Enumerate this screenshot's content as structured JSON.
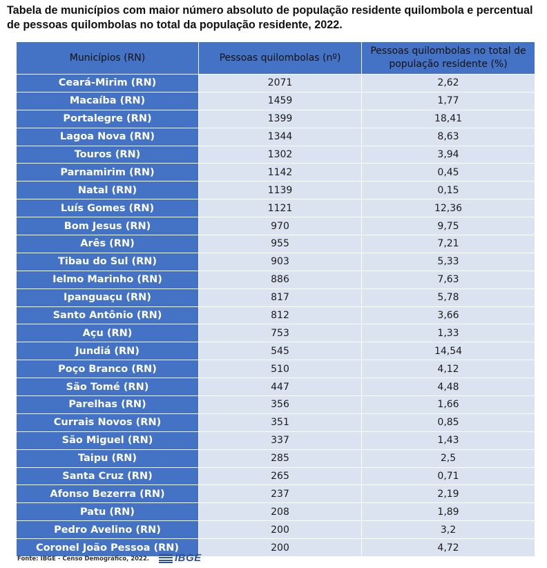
{
  "title": "Tabela de municípios com maior número absoluto de população residente quilombola e percentual de pessoas quilombolas no total da população residente, 2022.",
  "columns": {
    "municipio": "Municípios (RN)",
    "pessoas": "Pessoas quilombolas (nº)",
    "percentual": "Pessoas quilombolas no total de população residente (%)"
  },
  "rows": [
    {
      "municipio": "Ceará-Mirim (RN)",
      "pessoas": "2071",
      "percentual": "2,62"
    },
    {
      "municipio": "Macaíba (RN)",
      "pessoas": "1459",
      "percentual": "1,77"
    },
    {
      "municipio": "Portalegre (RN)",
      "pessoas": "1399",
      "percentual": "18,41"
    },
    {
      "municipio": "Lagoa Nova (RN)",
      "pessoas": "1344",
      "percentual": "8,63"
    },
    {
      "municipio": "Touros (RN)",
      "pessoas": "1302",
      "percentual": "3,94"
    },
    {
      "municipio": "Parnamirim (RN)",
      "pessoas": "1142",
      "percentual": "0,45"
    },
    {
      "municipio": "Natal (RN)",
      "pessoas": "1139",
      "percentual": "0,15"
    },
    {
      "municipio": "Luís Gomes (RN)",
      "pessoas": "1121",
      "percentual": "12,36"
    },
    {
      "municipio": "Bom Jesus (RN)",
      "pessoas": "970",
      "percentual": "9,75"
    },
    {
      "municipio": "Arês (RN)",
      "pessoas": "955",
      "percentual": "7,21"
    },
    {
      "municipio": "Tibau do Sul (RN)",
      "pessoas": "903",
      "percentual": "5,33"
    },
    {
      "municipio": "Ielmo Marinho (RN)",
      "pessoas": "886",
      "percentual": "7,63"
    },
    {
      "municipio": "Ipanguaçu (RN)",
      "pessoas": "817",
      "percentual": "5,78"
    },
    {
      "municipio": "Santo Antônio (RN)",
      "pessoas": "812",
      "percentual": "3,66"
    },
    {
      "municipio": "Açu (RN)",
      "pessoas": "753",
      "percentual": "1,33"
    },
    {
      "municipio": "Jundiá (RN)",
      "pessoas": "545",
      "percentual": "14,54"
    },
    {
      "municipio": "Poço Branco (RN)",
      "pessoas": "510",
      "percentual": "4,12"
    },
    {
      "municipio": "São Tomé (RN)",
      "pessoas": "447",
      "percentual": "4,48"
    },
    {
      "municipio": "Parelhas (RN)",
      "pessoas": "356",
      "percentual": "1,66"
    },
    {
      "municipio": "Currais Novos (RN)",
      "pessoas": "351",
      "percentual": "0,85"
    },
    {
      "municipio": "São Miguel (RN)",
      "pessoas": "337",
      "percentual": "1,43"
    },
    {
      "municipio": "Taipu (RN)",
      "pessoas": "285",
      "percentual": "2,5"
    },
    {
      "municipio": "Santa Cruz (RN)",
      "pessoas": "265",
      "percentual": "0,71"
    },
    {
      "municipio": "Afonso Bezerra (RN)",
      "pessoas": "237",
      "percentual": "2,19"
    },
    {
      "municipio": "Patu (RN)",
      "pessoas": "208",
      "percentual": "1,89"
    },
    {
      "municipio": "Pedro Avelino (RN)",
      "pessoas": "200",
      "percentual": "3,2"
    },
    {
      "municipio": "Coronel João Pessoa (RN)",
      "pessoas": "200",
      "percentual": "4,72"
    }
  ],
  "source": "Fonte: IBGE - Censo Demográfico, 2022.",
  "logo": {
    "text": "IBGE",
    "icon": "ibge-logo-icon"
  },
  "colors": {
    "header_bg": "#4472c4",
    "value_bg": "#dbe3f1",
    "logo": "#2c4f9e"
  }
}
